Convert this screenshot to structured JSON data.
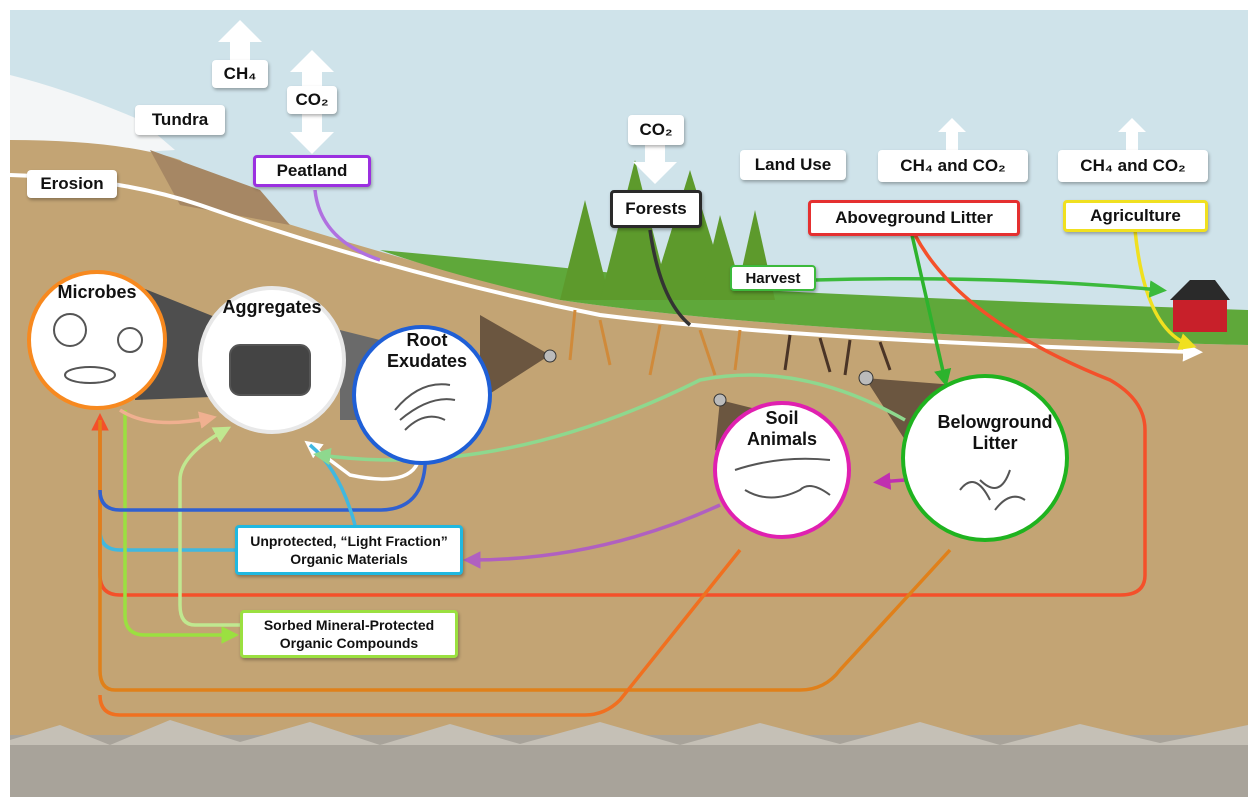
{
  "labels": {
    "ch4": "CH₄",
    "co2_peatland": "CO₂",
    "tundra": "Tundra",
    "erosion": "Erosion",
    "peatland": "Peatland",
    "co2_forests": "CO₂",
    "forests": "Forests",
    "land_use": "Land Use",
    "ch4_co2_land_use": "CH₄ and CO₂",
    "aboveground_litter": "Aboveground Litter",
    "ch4_co2_agriculture": "CH₄ and CO₂",
    "agriculture": "Agriculture",
    "harvest": "Harvest"
  },
  "pools": {
    "microbes": "Microbes",
    "aggregates": "Aggregates",
    "root_exudates": "Root Exudates",
    "soil_animals": "Soil Animals",
    "belowground_litter": "Belowground Litter",
    "light_fraction": "Unprotected, “Light Fraction” Organic Materials",
    "mineral_protected": "Sorbed Mineral-Protected Organic Compounds"
  }
}
